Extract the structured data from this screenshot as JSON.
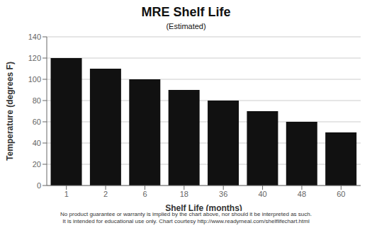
{
  "chart_data": {
    "type": "bar",
    "title": "MRE Shelf Life",
    "subtitle": "(Estimated)",
    "xlabel": "Shelf Life (months)",
    "ylabel": "Temperature (degrees F)",
    "categories": [
      "1",
      "2",
      "6",
      "18",
      "36",
      "40",
      "48",
      "60"
    ],
    "values": [
      120,
      110,
      100,
      90,
      80,
      70,
      60,
      50
    ],
    "color": "#111111",
    "ylim": [
      0,
      140
    ],
    "yticks": [
      0,
      20,
      40,
      60,
      80,
      100,
      120,
      140
    ],
    "grid": true,
    "annotations": [
      "No product guarantee or warranty is implied by the chart above, nor should it be interpreted as such.",
      "It is intended for educational use only. Chart courtesy http://www.readymeal.com/shelflifechart.html"
    ]
  }
}
